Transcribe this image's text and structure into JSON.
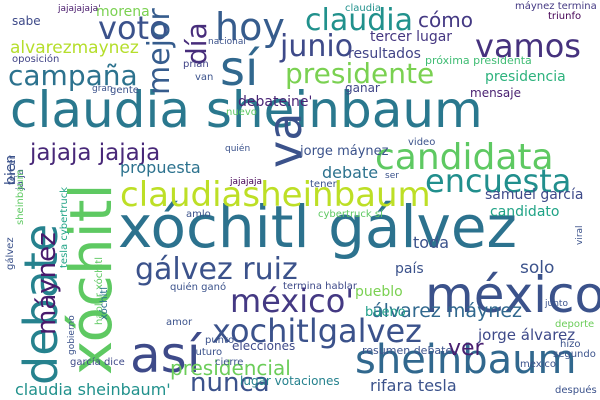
{
  "title": "",
  "words": [
    {
      "text": "claudia sheinbaum",
      "color": "#2a788e"
    },
    {
      "text": "xóchitl gálvez",
      "color": "#2c728e"
    },
    {
      "text": "méxico",
      "color": "#3b528b"
    },
    {
      "text": "claudiasheinbaum",
      "color": "#bddf26"
    },
    {
      "text": "sheinbaum",
      "color": "#31688e"
    },
    {
      "text": "xochitlgalvez",
      "color": "#3b528b"
    },
    {
      "text": "candidata",
      "color": "#5ec962"
    },
    {
      "text": "debate",
      "color": "#26828e"
    },
    {
      "text": "xóchitl",
      "color": "#5ec962"
    },
    {
      "text": "gálvez ruiz",
      "color": "#3b528b"
    },
    {
      "text": "así",
      "color": "#3e4a89"
    },
    {
      "text": "encuesta",
      "color": "#218f8d"
    },
    {
      "text": "presidente",
      "color": "#7ad151"
    },
    {
      "text": "méxico'",
      "color": "#443983"
    },
    {
      "text": "campaña",
      "color": "#2c728e"
    },
    {
      "text": "jajaja jajaja",
      "color": "#482878"
    },
    {
      "text": "hoy",
      "color": "#365c8d"
    },
    {
      "text": "sí",
      "color": "#31688e"
    },
    {
      "text": "vamos",
      "color": "#46327e"
    },
    {
      "text": "junio",
      "color": "#3e4a89"
    },
    {
      "text": "claudia",
      "color": "#21918c"
    },
    {
      "text": "voto",
      "color": "#3b528b"
    },
    {
      "text": "mejor",
      "color": "#365c8d"
    },
    {
      "text": "día",
      "color": "#472d7b"
    },
    {
      "text": "va",
      "color": "#3b528b"
    },
    {
      "text": "máynez",
      "color": "#481a6c"
    },
    {
      "text": "nunca",
      "color": "#3b528b"
    },
    {
      "text": "presidencial",
      "color": "#6ccd5a"
    },
    {
      "text": "álvarez máynez",
      "color": "#31688e"
    },
    {
      "text": "ver",
      "color": "#481f70"
    },
    {
      "text": "claudia sheinbaum'",
      "color": "#21918c"
    },
    {
      "text": "alvarezmaynez",
      "color": "#b5de2b"
    },
    {
      "text": "cómo",
      "color": "#443983"
    },
    {
      "text": "resultados",
      "color": "#414487"
    },
    {
      "text": "tercer lugar",
      "color": "#453781"
    },
    {
      "text": "presidencia",
      "color": "#2db27d"
    },
    {
      "text": "próxima presidenta",
      "color": "#3fbc73"
    },
    {
      "text": "debateine'",
      "color": "#482475"
    },
    {
      "text": "mensaje",
      "color": "#481f70"
    },
    {
      "text": "ganar",
      "color": "#404688"
    },
    {
      "text": "jorge máynez",
      "color": "#3b528b"
    },
    {
      "text": "propuesta",
      "color": "#2c728e"
    },
    {
      "text": "candidato",
      "color": "#20a386"
    },
    {
      "text": "samuel garcía",
      "color": "#3e4a89"
    },
    {
      "text": "debate",
      "color": "#2c728e"
    },
    {
      "text": "pueblo",
      "color": "#7ad151"
    },
    {
      "text": "toda",
      "color": "#3b528b"
    },
    {
      "text": "solo",
      "color": "#3b528b"
    },
    {
      "text": "país",
      "color": "#3b528b"
    },
    {
      "text": "jorge álvarez",
      "color": "#3e4a89"
    },
    {
      "text": "bueno",
      "color": "#1f9e89"
    },
    {
      "text": "rifara tesla",
      "color": "#3b528b"
    },
    {
      "text": "elecciones",
      "color": "#3e4a89"
    },
    {
      "text": "lugar votaciones",
      "color": "#26828e"
    },
    {
      "text": "resumen debate",
      "color": "#3b528b"
    },
    {
      "text": "bien",
      "color": "#3b528b"
    },
    {
      "text": "morena",
      "color": "#7ad151"
    },
    {
      "text": "sabe",
      "color": "#3e4a89"
    },
    {
      "text": "triunfo",
      "color": "#440154"
    },
    {
      "text": "máynez termina",
      "color": "#443983"
    },
    {
      "text": "oposición",
      "color": "#414487"
    },
    {
      "text": "nacional",
      "color": "#3b528b"
    },
    {
      "text": "prian",
      "color": "#414487"
    },
    {
      "text": "van",
      "color": "#3b528b"
    },
    {
      "text": "gran",
      "color": "#3b528b"
    },
    {
      "text": "gente",
      "color": "#3b528b"
    },
    {
      "text": "nuevo",
      "color": "#5ec962"
    },
    {
      "text": "quién",
      "color": "#3b528b"
    },
    {
      "text": "video",
      "color": "#3b528b"
    },
    {
      "text": "ser",
      "color": "#3b528b"
    },
    {
      "text": "tener",
      "color": "#3b528b"
    },
    {
      "text": "cybertruck sí",
      "color": "#5ec962"
    },
    {
      "text": "amlo",
      "color": "#3b528b"
    },
    {
      "text": "termina hablar",
      "color": "#3e4a89"
    },
    {
      "text": "quién ganó",
      "color": "#3b528b"
    },
    {
      "text": "futuro",
      "color": "#3b528b"
    },
    {
      "text": "amor",
      "color": "#3b528b"
    },
    {
      "text": "punto",
      "color": "#3b528b"
    },
    {
      "text": "cierre",
      "color": "#3b528b"
    },
    {
      "text": "gobierno",
      "color": "#3b528b"
    },
    {
      "text": "deporte",
      "color": "#6ccd5a"
    },
    {
      "text": "hizo",
      "color": "#3b528b"
    },
    {
      "text": "segundo",
      "color": "#3b528b"
    },
    {
      "text": "mexico",
      "color": "#3b528b"
    },
    {
      "text": "después",
      "color": "#3b528b"
    },
    {
      "text": "garcía dice",
      "color": "#3e4a89"
    },
    {
      "text": "junto",
      "color": "#3b528b"
    },
    {
      "text": "viral",
      "color": "#3b528b"
    },
    {
      "text": "tesla cybertruck",
      "color": "#20a386"
    },
    {
      "text": "gálvez",
      "color": "#3b528b"
    },
    {
      "text": "hablar xóchitl",
      "color": "#5ec962"
    },
    {
      "text": "xóchitl",
      "color": "#2c728e"
    },
    {
      "text": "ja ja",
      "color": "#3b528b"
    },
    {
      "text": "jajajaja",
      "color": "#440154"
    },
    {
      "text": "jajajajaja'",
      "color": "#481a6c"
    },
    {
      "text": "claudia",
      "color": "#21918c"
    },
    {
      "text": "tercer",
      "color": "#3b528b"
    },
    {
      "text": "sheinbaum",
      "color": "#5ec962"
    }
  ]
}
